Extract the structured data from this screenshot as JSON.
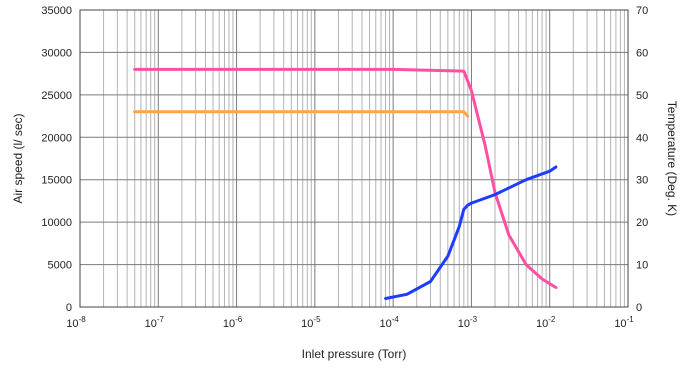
{
  "chart_data": {
    "type": "line",
    "xlabel": "Inlet pressure (Torr)",
    "ylabel_left": "Air speed (l/ sec)",
    "ylabel_right": "Temperature (Deg. K)",
    "x_scale": "log",
    "xlim": [
      1e-08,
      0.1
    ],
    "ylim_left": [
      0,
      35000
    ],
    "ylim_right": [
      0,
      70
    ],
    "grid": true,
    "x_ticks": [
      {
        "value": 1e-08,
        "base": "10",
        "exp": "-8"
      },
      {
        "value": 1e-07,
        "base": "10",
        "exp": "-7"
      },
      {
        "value": 1e-06,
        "base": "10",
        "exp": "-6"
      },
      {
        "value": 1e-05,
        "base": "10",
        "exp": "-5"
      },
      {
        "value": 0.0001,
        "base": "10",
        "exp": "-4"
      },
      {
        "value": 0.001,
        "base": "10",
        "exp": "-3"
      },
      {
        "value": 0.01,
        "base": "10",
        "exp": "-2"
      },
      {
        "value": 0.1,
        "base": "10",
        "exp": "-1"
      }
    ],
    "y_ticks_left": [
      "0",
      "5000",
      "10000",
      "15000",
      "20000",
      "25000",
      "30000",
      "35000"
    ],
    "y_ticks_right": [
      "0",
      "10",
      "20",
      "30",
      "40",
      "50",
      "60",
      "70"
    ],
    "series": [
      {
        "color": "#ff4fa3",
        "axis": "left",
        "x": [
          5e-08,
          1e-07,
          1e-06,
          1e-05,
          0.0001,
          0.0008,
          0.001,
          0.0015,
          0.002,
          0.003,
          0.005,
          0.008,
          0.012
        ],
        "y": [
          28000,
          28000,
          28000,
          28000,
          28000,
          27800,
          25500,
          19000,
          13500,
          8500,
          5000,
          3300,
          2300
        ]
      },
      {
        "color": "#ffa640",
        "axis": "left",
        "x": [
          5e-08,
          1e-07,
          1e-06,
          1e-05,
          0.0001,
          0.0008,
          0.0009
        ],
        "y": [
          23000,
          23000,
          23000,
          23000,
          23000,
          23000,
          22500
        ]
      },
      {
        "color": "#1e3cff",
        "axis": "right",
        "x": [
          8e-05,
          0.00015,
          0.0003,
          0.0005,
          0.0007,
          0.0008,
          0.0009,
          0.001,
          0.002,
          0.005,
          0.01,
          0.012
        ],
        "y": [
          2,
          3,
          6,
          12,
          19,
          23,
          24,
          24.5,
          26.5,
          30,
          32,
          33
        ]
      }
    ]
  }
}
